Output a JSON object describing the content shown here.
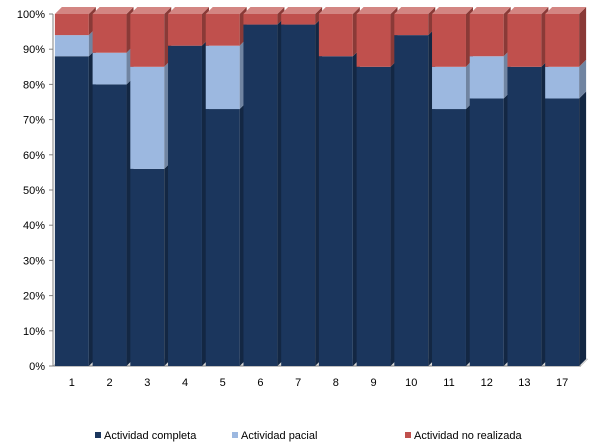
{
  "chart_data": {
    "type": "bar",
    "stacked": true,
    "percent_stacked": true,
    "style": "3d",
    "categories": [
      "1",
      "2",
      "3",
      "4",
      "5",
      "6",
      "7",
      "8",
      "9",
      "10",
      "11",
      "12",
      "13",
      "17"
    ],
    "series": [
      {
        "name": "Actividad completa",
        "color": "#1b365d",
        "values": [
          88,
          80,
          56,
          91,
          73,
          97,
          97,
          88,
          85,
          94,
          73,
          76,
          85,
          76
        ]
      },
      {
        "name": "Actividad pacial",
        "color": "#9cb8e0",
        "values": [
          6,
          9,
          29,
          0,
          18,
          0,
          0,
          0,
          0,
          0,
          12,
          12,
          0,
          9
        ]
      },
      {
        "name": "Actividad no realizada",
        "color": "#c0504d",
        "values": [
          6,
          11,
          15,
          9,
          9,
          3,
          3,
          12,
          15,
          6,
          15,
          12,
          15,
          15
        ]
      }
    ],
    "ylim": [
      0,
      100
    ],
    "yticks": [
      "0%",
      "10%",
      "20%",
      "30%",
      "40%",
      "50%",
      "60%",
      "70%",
      "80%",
      "90%",
      "100%"
    ],
    "grid": false,
    "legend_position": "bottom"
  }
}
